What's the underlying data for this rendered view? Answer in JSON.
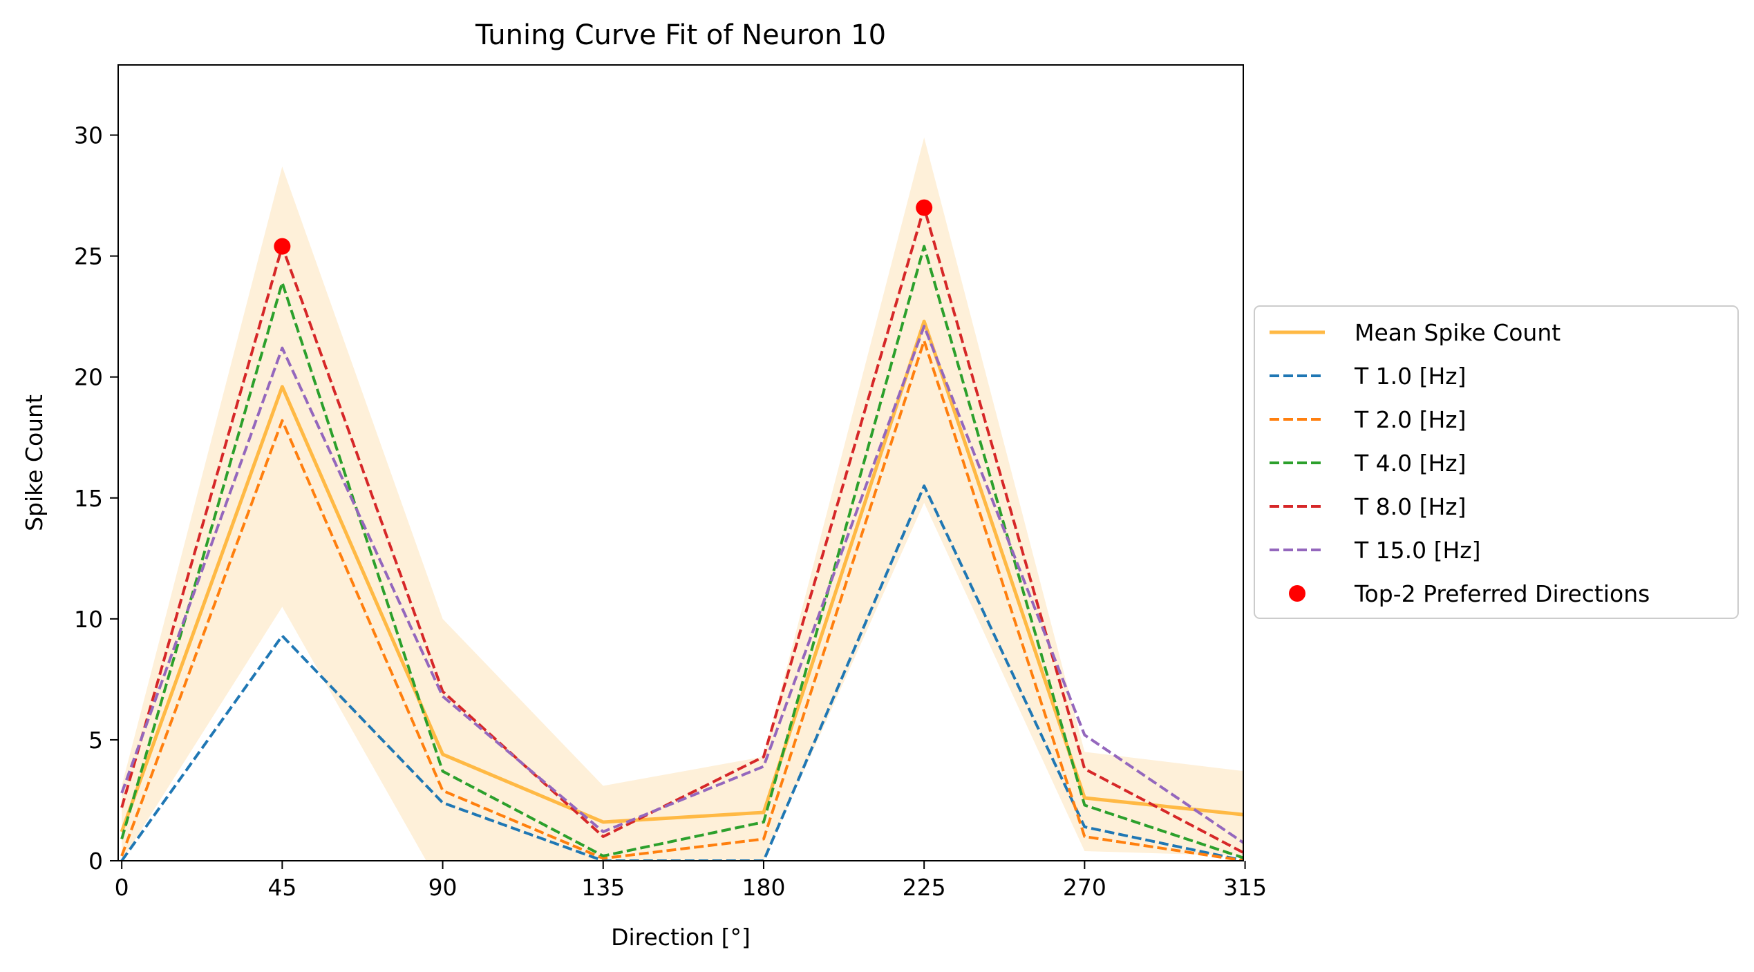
{
  "chart_data": {
    "type": "line",
    "title": "Tuning Curve Fit of Neuron 10",
    "xlabel": "Direction [°]",
    "ylabel": "Spike Count",
    "x": [
      0,
      45,
      90,
      135,
      180,
      225,
      270,
      315
    ],
    "xticks": [
      "0",
      "45",
      "90",
      "135",
      "180",
      "225",
      "270",
      "315"
    ],
    "yticks": [
      "0",
      "5",
      "10",
      "15",
      "20",
      "25",
      "30"
    ],
    "xlim": [
      -1,
      314.5
    ],
    "ylim": [
      0,
      32.9
    ],
    "grid": false,
    "legend_position": "center-right-outside",
    "band": {
      "color": "#fdebcc",
      "upper": [
        3.1,
        28.7,
        10.0,
        3.1,
        4.3,
        29.9,
        4.5,
        3.7
      ],
      "lower": [
        0.0,
        10.5,
        -1.2,
        0.0,
        0.0,
        14.8,
        0.4,
        0.2
      ]
    },
    "series": [
      {
        "name": "Mean Spike Count",
        "color": "#ffb944",
        "style": "solid",
        "values": [
          1.2,
          19.6,
          4.4,
          1.6,
          2.0,
          22.3,
          2.6,
          1.9
        ]
      },
      {
        "name": "T 1.0 [Hz]",
        "color": "#1f77b4",
        "style": "dashed",
        "values": [
          0.0,
          9.3,
          2.4,
          0.0,
          0.0,
          15.5,
          1.4,
          0.0
        ]
      },
      {
        "name": "T 2.0 [Hz]",
        "color": "#ff7f0e",
        "style": "dashed",
        "values": [
          0.2,
          18.2,
          2.9,
          0.1,
          0.9,
          21.5,
          1.0,
          0.0
        ]
      },
      {
        "name": "T 4.0 [Hz]",
        "color": "#2ca02c",
        "style": "dashed",
        "values": [
          0.9,
          23.9,
          3.7,
          0.2,
          1.6,
          25.4,
          2.3,
          0.1
        ]
      },
      {
        "name": "T 8.0 [Hz]",
        "color": "#d62728",
        "style": "dashed",
        "values": [
          2.2,
          25.4,
          7.0,
          1.0,
          4.3,
          27.0,
          3.8,
          0.3
        ]
      },
      {
        "name": "T 15.0 [Hz]",
        "color": "#9467bd",
        "style": "dashed",
        "values": [
          2.8,
          21.2,
          6.8,
          1.2,
          3.9,
          22.1,
          5.2,
          0.7
        ]
      }
    ],
    "markers": {
      "name": "Top-2 Preferred Directions",
      "color": "#ff0000",
      "points": [
        {
          "x": 45,
          "y": 25.4
        },
        {
          "x": 225,
          "y": 27.0
        }
      ]
    }
  }
}
